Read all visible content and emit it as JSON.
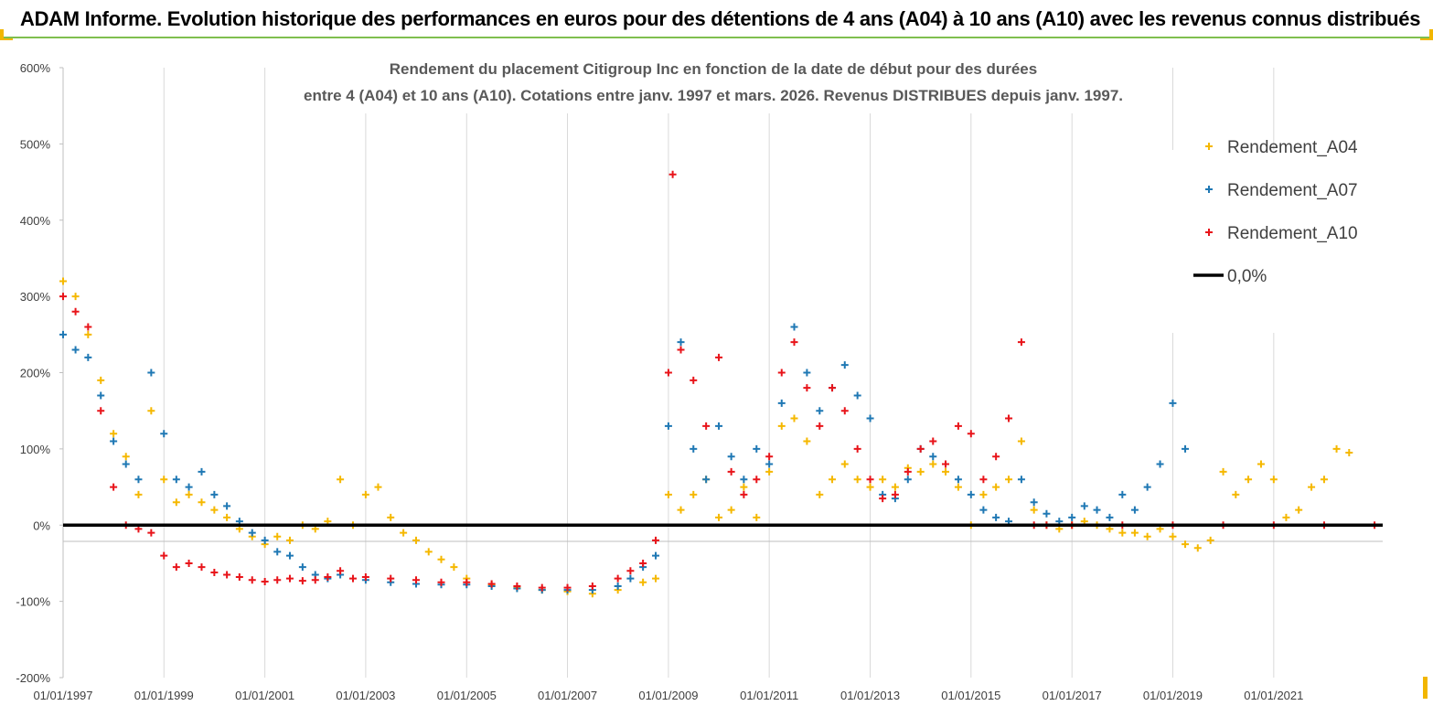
{
  "banner": {
    "title": "ADAM Informe. Evolution historique des performances en euros pour des détentions de 4 ans (A04) à 10 ans (A10) avec les revenus connus distribués"
  },
  "chart_data": {
    "type": "scatter",
    "title_line1": "Rendement du placement Citigroup Inc en fonction de la date de début pour des durées",
    "title_line2": "entre 4 (A04) et 10 ans (A10).  Cotations entre janv. 1997 et mars. 2026. Revenus DISTRIBUES depuis janv. 1997.",
    "xlabel": "",
    "ylabel": "",
    "ylim": [
      -200,
      600
    ],
    "xlim": [
      "1997-01-01",
      "2023-03-01"
    ],
    "y_ticks": [
      "600%",
      "500%",
      "400%",
      "300%",
      "200%",
      "100%",
      "0%",
      "-100%",
      "-200%"
    ],
    "y_tick_values": [
      600,
      500,
      400,
      300,
      200,
      100,
      0,
      -100,
      -200
    ],
    "x_ticks": [
      "01/01/1997",
      "01/01/1999",
      "01/01/2001",
      "01/01/2003",
      "01/01/2005",
      "01/01/2007",
      "01/01/2009",
      "01/01/2011",
      "01/01/2013",
      "01/01/2015",
      "01/01/2017",
      "01/01/2019",
      "01/01/2021"
    ],
    "grid": {
      "vertical": true,
      "horizontal": false
    },
    "legend_position": "top-right",
    "series": [
      {
        "name": "Rendement_A04",
        "color": "#f5b800",
        "marker": "plus",
        "points": [
          [
            "1997-01-01",
            320
          ],
          [
            "1997-04-01",
            300
          ],
          [
            "1997-07-01",
            250
          ],
          [
            "1997-10-01",
            190
          ],
          [
            "1998-01-01",
            120
          ],
          [
            "1998-04-01",
            90
          ],
          [
            "1998-07-01",
            40
          ],
          [
            "1998-10-01",
            150
          ],
          [
            "1999-01-01",
            60
          ],
          [
            "1999-04-01",
            30
          ],
          [
            "1999-07-01",
            40
          ],
          [
            "1999-10-01",
            30
          ],
          [
            "2000-01-01",
            20
          ],
          [
            "2000-04-01",
            10
          ],
          [
            "2000-07-01",
            -5
          ],
          [
            "2000-10-01",
            -15
          ],
          [
            "2001-01-01",
            -25
          ],
          [
            "2001-04-01",
            -15
          ],
          [
            "2001-07-01",
            -20
          ],
          [
            "2001-10-01",
            0
          ],
          [
            "2002-01-01",
            -5
          ],
          [
            "2002-04-01",
            5
          ],
          [
            "2002-07-01",
            60
          ],
          [
            "2002-10-01",
            0
          ],
          [
            "2003-01-01",
            40
          ],
          [
            "2003-04-01",
            50
          ],
          [
            "2003-07-01",
            10
          ],
          [
            "2003-10-01",
            -10
          ],
          [
            "2004-01-01",
            -20
          ],
          [
            "2004-04-01",
            -35
          ],
          [
            "2004-07-01",
            -45
          ],
          [
            "2004-10-01",
            -55
          ],
          [
            "2005-01-01",
            -70
          ],
          [
            "2005-07-01",
            -78
          ],
          [
            "2006-01-01",
            -82
          ],
          [
            "2006-07-01",
            -85
          ],
          [
            "2007-01-01",
            -87
          ],
          [
            "2007-07-01",
            -90
          ],
          [
            "2008-01-01",
            -85
          ],
          [
            "2008-07-01",
            -75
          ],
          [
            "2008-10-01",
            -70
          ],
          [
            "2009-01-01",
            40
          ],
          [
            "2009-04-01",
            20
          ],
          [
            "2009-07-01",
            40
          ],
          [
            "2009-10-01",
            60
          ],
          [
            "2010-01-01",
            10
          ],
          [
            "2010-04-01",
            20
          ],
          [
            "2010-07-01",
            50
          ],
          [
            "2010-10-01",
            10
          ],
          [
            "2011-01-01",
            70
          ],
          [
            "2011-04-01",
            130
          ],
          [
            "2011-07-01",
            140
          ],
          [
            "2011-10-01",
            110
          ],
          [
            "2012-01-01",
            40
          ],
          [
            "2012-04-01",
            60
          ],
          [
            "2012-07-01",
            80
          ],
          [
            "2012-10-01",
            60
          ],
          [
            "2013-01-01",
            50
          ],
          [
            "2013-04-01",
            60
          ],
          [
            "2013-07-01",
            50
          ],
          [
            "2013-10-01",
            75
          ],
          [
            "2014-01-01",
            70
          ],
          [
            "2014-04-01",
            80
          ],
          [
            "2014-07-01",
            70
          ],
          [
            "2014-10-01",
            50
          ],
          [
            "2015-01-01",
            0
          ],
          [
            "2015-04-01",
            40
          ],
          [
            "2015-07-01",
            50
          ],
          [
            "2015-10-01",
            60
          ],
          [
            "2016-01-01",
            110
          ],
          [
            "2016-04-01",
            20
          ],
          [
            "2016-07-01",
            0
          ],
          [
            "2016-10-01",
            -5
          ],
          [
            "2017-01-01",
            0
          ],
          [
            "2017-04-01",
            5
          ],
          [
            "2017-07-01",
            0
          ],
          [
            "2017-10-01",
            -5
          ],
          [
            "2018-01-01",
            -10
          ],
          [
            "2018-04-01",
            -10
          ],
          [
            "2018-07-01",
            -15
          ],
          [
            "2018-10-01",
            -5
          ],
          [
            "2019-01-01",
            -15
          ],
          [
            "2019-04-01",
            -25
          ],
          [
            "2019-07-01",
            -30
          ],
          [
            "2019-10-01",
            -20
          ],
          [
            "2020-01-01",
            70
          ],
          [
            "2020-04-01",
            40
          ],
          [
            "2020-07-01",
            60
          ],
          [
            "2020-10-01",
            80
          ],
          [
            "2021-01-01",
            60
          ],
          [
            "2021-04-01",
            10
          ],
          [
            "2021-07-01",
            20
          ],
          [
            "2021-10-01",
            50
          ],
          [
            "2022-01-01",
            60
          ],
          [
            "2022-04-01",
            100
          ],
          [
            "2022-07-01",
            95
          ]
        ]
      },
      {
        "name": "Rendement_A07",
        "color": "#1f78b4",
        "marker": "plus",
        "points": [
          [
            "1997-01-01",
            250
          ],
          [
            "1997-04-01",
            230
          ],
          [
            "1997-07-01",
            220
          ],
          [
            "1997-10-01",
            170
          ],
          [
            "1998-01-01",
            110
          ],
          [
            "1998-04-01",
            80
          ],
          [
            "1998-07-01",
            60
          ],
          [
            "1998-10-01",
            200
          ],
          [
            "1999-01-01",
            120
          ],
          [
            "1999-04-01",
            60
          ],
          [
            "1999-07-01",
            50
          ],
          [
            "1999-10-01",
            70
          ],
          [
            "2000-01-01",
            40
          ],
          [
            "2000-04-01",
            25
          ],
          [
            "2000-07-01",
            5
          ],
          [
            "2000-10-01",
            -10
          ],
          [
            "2001-01-01",
            -20
          ],
          [
            "2001-04-01",
            -35
          ],
          [
            "2001-07-01",
            -40
          ],
          [
            "2001-10-01",
            -55
          ],
          [
            "2002-01-01",
            -65
          ],
          [
            "2002-04-01",
            -70
          ],
          [
            "2002-07-01",
            -65
          ],
          [
            "2003-01-01",
            -72
          ],
          [
            "2003-07-01",
            -75
          ],
          [
            "2004-01-01",
            -77
          ],
          [
            "2004-07-01",
            -78
          ],
          [
            "2005-01-01",
            -78
          ],
          [
            "2005-07-01",
            -80
          ],
          [
            "2006-01-01",
            -83
          ],
          [
            "2006-07-01",
            -85
          ],
          [
            "2007-01-01",
            -85
          ],
          [
            "2007-07-01",
            -85
          ],
          [
            "2008-01-01",
            -80
          ],
          [
            "2008-04-01",
            -70
          ],
          [
            "2008-07-01",
            -55
          ],
          [
            "2008-10-01",
            -40
          ],
          [
            "2009-01-01",
            130
          ],
          [
            "2009-04-01",
            240
          ],
          [
            "2009-07-01",
            100
          ],
          [
            "2009-10-01",
            60
          ],
          [
            "2010-01-01",
            130
          ],
          [
            "2010-04-01",
            90
          ],
          [
            "2010-07-01",
            60
          ],
          [
            "2010-10-01",
            100
          ],
          [
            "2011-01-01",
            80
          ],
          [
            "2011-04-01",
            160
          ],
          [
            "2011-07-01",
            260
          ],
          [
            "2011-10-01",
            200
          ],
          [
            "2012-01-01",
            150
          ],
          [
            "2012-04-01",
            180
          ],
          [
            "2012-07-01",
            210
          ],
          [
            "2012-10-01",
            170
          ],
          [
            "2013-01-01",
            140
          ],
          [
            "2013-04-01",
            40
          ],
          [
            "2013-07-01",
            35
          ],
          [
            "2013-10-01",
            60
          ],
          [
            "2014-01-01",
            100
          ],
          [
            "2014-04-01",
            90
          ],
          [
            "2014-07-01",
            80
          ],
          [
            "2014-10-01",
            60
          ],
          [
            "2015-01-01",
            40
          ],
          [
            "2015-04-01",
            20
          ],
          [
            "2015-07-01",
            10
          ],
          [
            "2015-10-01",
            5
          ],
          [
            "2016-01-01",
            60
          ],
          [
            "2016-04-01",
            30
          ],
          [
            "2016-07-01",
            15
          ],
          [
            "2016-10-01",
            5
          ],
          [
            "2017-01-01",
            10
          ],
          [
            "2017-04-01",
            25
          ],
          [
            "2017-07-01",
            20
          ],
          [
            "2017-10-01",
            10
          ],
          [
            "2018-01-01",
            40
          ],
          [
            "2018-04-01",
            20
          ],
          [
            "2018-07-01",
            50
          ],
          [
            "2018-10-01",
            80
          ],
          [
            "2019-01-01",
            160
          ],
          [
            "2019-04-01",
            100
          ]
        ]
      },
      {
        "name": "Rendement_A10",
        "color": "#e8141a",
        "marker": "plus",
        "points": [
          [
            "1997-01-01",
            300
          ],
          [
            "1997-04-01",
            280
          ],
          [
            "1997-07-01",
            260
          ],
          [
            "1997-10-01",
            150
          ],
          [
            "1998-01-01",
            50
          ],
          [
            "1998-04-01",
            0
          ],
          [
            "1998-07-01",
            -5
          ],
          [
            "1998-10-01",
            -10
          ],
          [
            "1999-01-01",
            -40
          ],
          [
            "1999-04-01",
            -55
          ],
          [
            "1999-07-01",
            -50
          ],
          [
            "1999-10-01",
            -55
          ],
          [
            "2000-01-01",
            -62
          ],
          [
            "2000-04-01",
            -65
          ],
          [
            "2000-07-01",
            -68
          ],
          [
            "2000-10-01",
            -72
          ],
          [
            "2001-01-01",
            -74
          ],
          [
            "2001-04-01",
            -72
          ],
          [
            "2001-07-01",
            -70
          ],
          [
            "2001-10-01",
            -73
          ],
          [
            "2002-01-01",
            -72
          ],
          [
            "2002-04-01",
            -68
          ],
          [
            "2002-07-01",
            -60
          ],
          [
            "2002-10-01",
            -70
          ],
          [
            "2003-01-01",
            -68
          ],
          [
            "2003-07-01",
            -70
          ],
          [
            "2004-01-01",
            -72
          ],
          [
            "2004-07-01",
            -75
          ],
          [
            "2005-01-01",
            -75
          ],
          [
            "2005-07-01",
            -77
          ],
          [
            "2006-01-01",
            -80
          ],
          [
            "2006-07-01",
            -82
          ],
          [
            "2007-01-01",
            -82
          ],
          [
            "2007-07-01",
            -80
          ],
          [
            "2008-01-01",
            -70
          ],
          [
            "2008-04-01",
            -60
          ],
          [
            "2008-07-01",
            -50
          ],
          [
            "2008-10-01",
            -20
          ],
          [
            "2009-01-01",
            200
          ],
          [
            "2009-02-01",
            460
          ],
          [
            "2009-04-01",
            230
          ],
          [
            "2009-07-01",
            190
          ],
          [
            "2009-10-01",
            130
          ],
          [
            "2010-01-01",
            220
          ],
          [
            "2010-04-01",
            70
          ],
          [
            "2010-07-01",
            40
          ],
          [
            "2010-10-01",
            60
          ],
          [
            "2011-01-01",
            90
          ],
          [
            "2011-04-01",
            200
          ],
          [
            "2011-07-01",
            240
          ],
          [
            "2011-10-01",
            180
          ],
          [
            "2012-01-01",
            130
          ],
          [
            "2012-04-01",
            180
          ],
          [
            "2012-07-01",
            150
          ],
          [
            "2012-10-01",
            100
          ],
          [
            "2013-01-01",
            60
          ],
          [
            "2013-04-01",
            35
          ],
          [
            "2013-07-01",
            40
          ],
          [
            "2013-10-01",
            70
          ],
          [
            "2014-01-01",
            100
          ],
          [
            "2014-04-01",
            110
          ],
          [
            "2014-07-01",
            80
          ],
          [
            "2014-10-01",
            130
          ],
          [
            "2015-01-01",
            120
          ],
          [
            "2015-04-01",
            60
          ],
          [
            "2015-07-01",
            90
          ],
          [
            "2015-10-01",
            140
          ],
          [
            "2016-01-01",
            240
          ],
          [
            "2016-04-01",
            0
          ],
          [
            "2016-07-01",
            0
          ],
          [
            "2017-01-01",
            0
          ],
          [
            "2018-01-01",
            0
          ],
          [
            "2019-01-01",
            0
          ],
          [
            "2020-01-01",
            0
          ],
          [
            "2021-01-01",
            0
          ],
          [
            "2022-01-01",
            0
          ],
          [
            "2023-01-01",
            0
          ]
        ]
      },
      {
        "name": "0,0%",
        "color": "#000000",
        "marker": "line",
        "points": [
          [
            "1997-01-01",
            0
          ],
          [
            "2023-03-01",
            0
          ]
        ]
      }
    ]
  }
}
